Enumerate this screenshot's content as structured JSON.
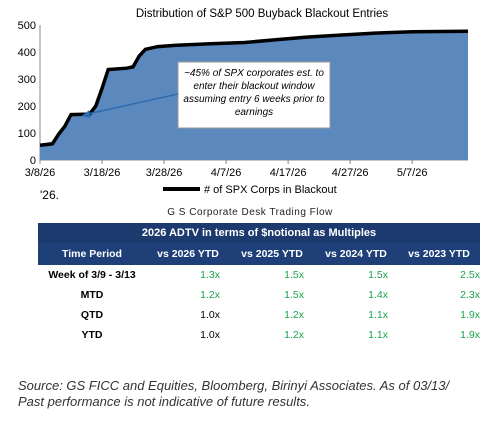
{
  "chart_data": {
    "type": "area",
    "title": "Distribution of S&P 500 Buyback Blackout Entries",
    "x_tick_labels": [
      "3/8/26",
      "3/18/26",
      "3/28/26",
      "4/7/26",
      "4/17/26",
      "4/27/26",
      "5/7/26"
    ],
    "x_range": [
      "3/8/26",
      "5/16/26"
    ],
    "ylim": [
      0,
      500
    ],
    "y_ticks": [
      0,
      100,
      200,
      300,
      400,
      500
    ],
    "grid": false,
    "legend": {
      "placement": "bottom-center",
      "label": "# of SPX Corps in Blackout"
    },
    "series": [
      {
        "name": "# of SPX Corps in Blackout",
        "points": [
          [
            "3/8/26",
            55
          ],
          [
            "3/10/26",
            60
          ],
          [
            "3/11/26",
            95
          ],
          [
            "3/12/26",
            125
          ],
          [
            "3/13/26",
            168
          ],
          [
            "3/16/26",
            170
          ],
          [
            "3/17/26",
            200
          ],
          [
            "3/18/26",
            265
          ],
          [
            "3/19/26",
            335
          ],
          [
            "3/22/26",
            340
          ],
          [
            "3/23/26",
            345
          ],
          [
            "3/24/26",
            385
          ],
          [
            "3/25/26",
            410
          ],
          [
            "3/27/26",
            420
          ],
          [
            "3/30/26",
            425
          ],
          [
            "4/4/26",
            430
          ],
          [
            "4/10/26",
            435
          ],
          [
            "4/15/26",
            445
          ],
          [
            "4/20/26",
            455
          ],
          [
            "4/25/26",
            462
          ],
          [
            "5/1/26",
            470
          ],
          [
            "5/7/26",
            475
          ],
          [
            "5/16/26",
            477
          ]
        ]
      }
    ],
    "annotation": {
      "text": "~45% of SPX corporates est. to enter their blackout window assuming entry 6 weeks prior to earnings",
      "points_to": [
        "3/14/26",
        170
      ]
    }
  },
  "stub_text": "'26.",
  "table": {
    "title": "G S Corporate Desk Trading Flow",
    "banner": "2026 ADTV in terms of $notional as Multiples",
    "columns": [
      "Time Period",
      "vs 2026 YTD",
      "vs 2025 YTD",
      "vs 2024 YTD",
      "vs 2023 YTD"
    ],
    "rows": [
      {
        "period": "Week of 3/9 - 3/13",
        "values": [
          "1.3x",
          "1.5x",
          "1.5x",
          "2.5x"
        ]
      },
      {
        "period": "MTD",
        "values": [
          "1.2x",
          "1.5x",
          "1.4x",
          "2.3x"
        ]
      },
      {
        "period": "QTD",
        "values": [
          "1.0x",
          "1.2x",
          "1.1x",
          "1.9x"
        ]
      },
      {
        "period": "YTD",
        "values": [
          "1.0x",
          "1.2x",
          "1.1x",
          "1.9x"
        ]
      }
    ]
  },
  "source_lines": [
    "Source: GS FICC and Equities, Bloomberg, Birinyi Associates. As of 03/13/",
    "Past performance is not indicative of future results."
  ],
  "colors": {
    "area_fill": "#5b88bd",
    "line": "#000000",
    "annotation_box": "#ffffff",
    "arrow": "#2e6bb0",
    "table_header": "#1e3f78",
    "positive": "#1aa34a"
  }
}
